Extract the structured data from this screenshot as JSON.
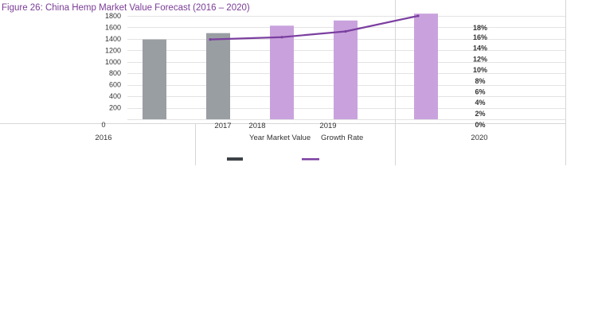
{
  "chart_data": {
    "type": "bar",
    "title": "Figure 26: China Hemp Market Value Forecast (2016 – 2020)",
    "categories": [
      "2016",
      "2017",
      "2018",
      "2019",
      "2020"
    ],
    "y_ticks": [
      "1800",
      "1600",
      "1400",
      "1200",
      "1000",
      "800",
      "600",
      "400",
      "200",
      "0"
    ],
    "right_ticks": [
      "18%",
      "16%",
      "14%",
      "12%",
      "10%",
      "8%",
      "6%",
      "4%",
      "2%",
      "0%"
    ],
    "ylim": [
      0,
      1800
    ],
    "y2lim": [
      0,
      18
    ],
    "series": [
      {
        "name": "Year Market Value",
        "type": "bar",
        "values": [
          1390,
          1500,
          1630,
          1720,
          1840
        ],
        "colors": [
          "#999ea3",
          "#999ea3",
          "#c9a2dd",
          "#c9a2dd",
          "#c9a2dd"
        ]
      },
      {
        "name": "Growth Rate",
        "type": "line",
        "axis": "right",
        "color": "#7b3fa0",
        "values": [
          null,
          13.9,
          14.3,
          15.3,
          18.0
        ]
      }
    ],
    "legend_colors": [
      "#3d4247",
      "#7b3fa0"
    ],
    "legend_position": "bottom",
    "grid": true
  }
}
